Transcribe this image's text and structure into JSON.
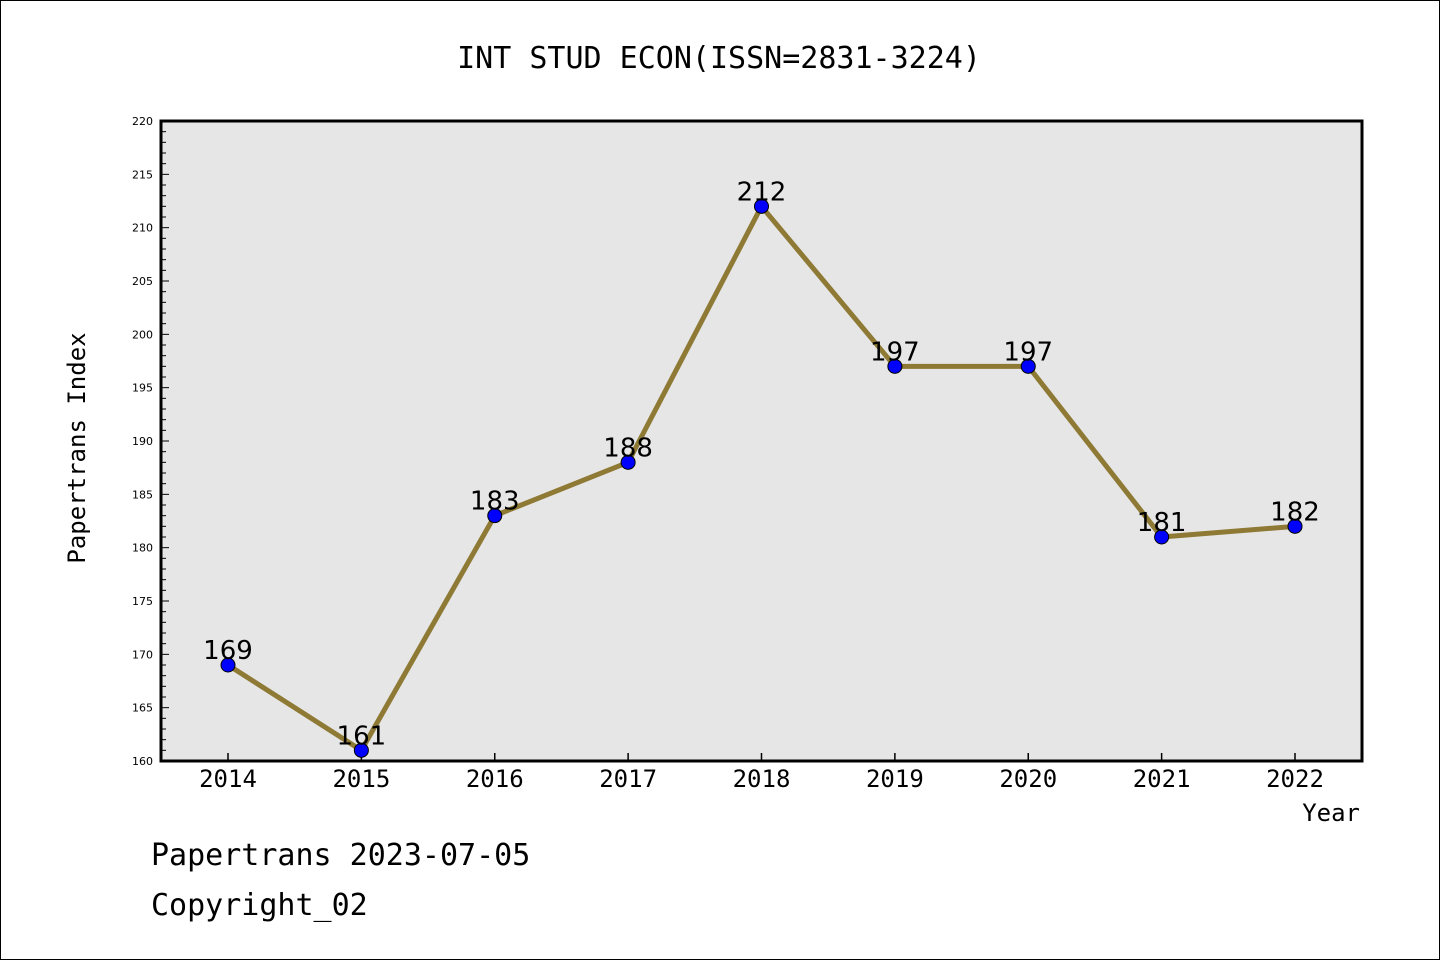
{
  "chart_data": {
    "type": "line",
    "title": "INT STUD ECON(ISSN=2831-3224)",
    "xlabel": "Year",
    "ylabel": "Papertrans Index",
    "categories": [
      "2014",
      "2015",
      "2016",
      "2017",
      "2018",
      "2019",
      "2020",
      "2021",
      "2022"
    ],
    "series": [
      {
        "values": [
          169,
          161,
          183,
          188,
          212,
          197,
          197,
          181,
          182
        ]
      }
    ],
    "ylim": [
      160,
      220
    ],
    "y_ticks": [
      160,
      165,
      170,
      175,
      180,
      185,
      190,
      195,
      200,
      205,
      210,
      215,
      220
    ],
    "grid": false,
    "colors": {
      "line": "#8e7a35",
      "marker": "#0000ff",
      "plot_bg": "#e6e6e6"
    }
  },
  "footer": {
    "date_text": "Papertrans 2023-07-05",
    "copyright_text": "Copyright_02"
  }
}
